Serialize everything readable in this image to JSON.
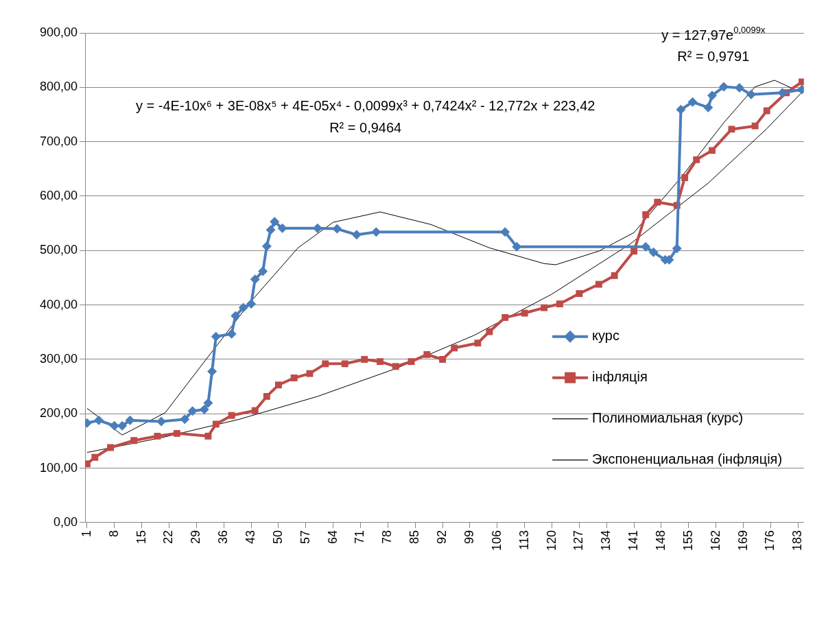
{
  "chart_data": {
    "type": "line",
    "xlim": [
      0.5,
      184.5
    ],
    "xticks": [
      1,
      8,
      15,
      22,
      29,
      36,
      43,
      50,
      57,
      64,
      71,
      78,
      85,
      92,
      99,
      106,
      113,
      120,
      127,
      134,
      141,
      148,
      155,
      162,
      169,
      176,
      183
    ],
    "ylim": [
      0,
      900
    ],
    "yticks": [
      {
        "value": 0,
        "label": "0,00"
      },
      {
        "value": 100,
        "label": "100,00"
      },
      {
        "value": 200,
        "label": "200,00"
      },
      {
        "value": 300,
        "label": "300,00"
      },
      {
        "value": 400,
        "label": "400,00"
      },
      {
        "value": 500,
        "label": "500,00"
      },
      {
        "value": 600,
        "label": "600,00"
      },
      {
        "value": 700,
        "label": "700,00"
      },
      {
        "value": 800,
        "label": "800,00"
      },
      {
        "value": 900,
        "label": "900,00"
      }
    ],
    "grid": "y",
    "legend": "right",
    "line_style": "solid",
    "series": [
      {
        "name": "курс",
        "color": "#4a7ebb",
        "marker": "diamond",
        "x": [
          1,
          4,
          8,
          10,
          12,
          20,
          26,
          28,
          31,
          32,
          33,
          34,
          38,
          39,
          41,
          43,
          44,
          46,
          47,
          48,
          49,
          51,
          60,
          65,
          70,
          75,
          108,
          111,
          144,
          146,
          149,
          150,
          152,
          153,
          156,
          160,
          161,
          164,
          168,
          171,
          179,
          184
        ],
        "values": [
          183,
          188,
          178,
          178,
          188,
          186,
          190,
          205,
          208,
          220,
          278,
          342,
          347,
          380,
          395,
          402,
          447,
          462,
          508,
          538,
          553,
          541,
          541,
          540,
          529,
          534,
          534,
          507,
          507,
          497,
          483,
          483,
          504,
          759,
          773,
          763,
          785,
          801,
          799,
          787,
          790,
          796
        ]
      },
      {
        "name": "інфляція",
        "color": "#be4b48",
        "marker": "square",
        "x": [
          1,
          3,
          7,
          13,
          19,
          24,
          32,
          34,
          38,
          44,
          47,
          50,
          54,
          58,
          62,
          67,
          72,
          76,
          80,
          84,
          88,
          92,
          95,
          101,
          104,
          108,
          113,
          118,
          122,
          127,
          132,
          136,
          141,
          144,
          147,
          152,
          154,
          157,
          161,
          166,
          172,
          175,
          180,
          184
        ],
        "values": [
          108,
          120,
          138,
          151,
          159,
          164,
          159,
          181,
          197,
          206,
          232,
          253,
          266,
          274,
          292,
          292,
          300,
          296,
          287,
          296,
          309,
          300,
          321,
          330,
          351,
          377,
          385,
          395,
          402,
          421,
          438,
          454,
          499,
          566,
          589,
          583,
          634,
          667,
          684,
          723,
          729,
          757,
          790,
          810
        ]
      },
      {
        "name": "Полиномиальная (курс)",
        "color": "#000000",
        "marker": "none",
        "x": [
          1,
          10,
          21,
          32,
          43,
          55,
          64,
          76,
          89,
          104,
          118,
          121,
          132,
          141,
          153,
          164,
          172,
          177,
          184
        ],
        "values": [
          210,
          161,
          202,
          305,
          407,
          505,
          552,
          571,
          548,
          505,
          476,
          474,
          499,
          533,
          634,
          735,
          801,
          813,
          790
        ]
      },
      {
        "name": "Экспоненциальная (інфляція)",
        "color": "#000000",
        "marker": "none",
        "x": [
          1,
          20,
          40,
          60,
          80,
          100,
          120,
          140,
          160,
          175,
          184
        ],
        "values": [
          129,
          156,
          190,
          232,
          283,
          344,
          420,
          512,
          624,
          724,
          791
        ]
      }
    ],
    "annotations": [
      "y = -4E-10x⁶ + 3E-08x⁵ + 4E-05x⁴ - 0,0099x³ + 0,7424x² - 12,772x + 223,42",
      "R² = 0,9464",
      "y = 127,97e$^{0,0099x}$",
      "R² = 0,9791"
    ]
  }
}
